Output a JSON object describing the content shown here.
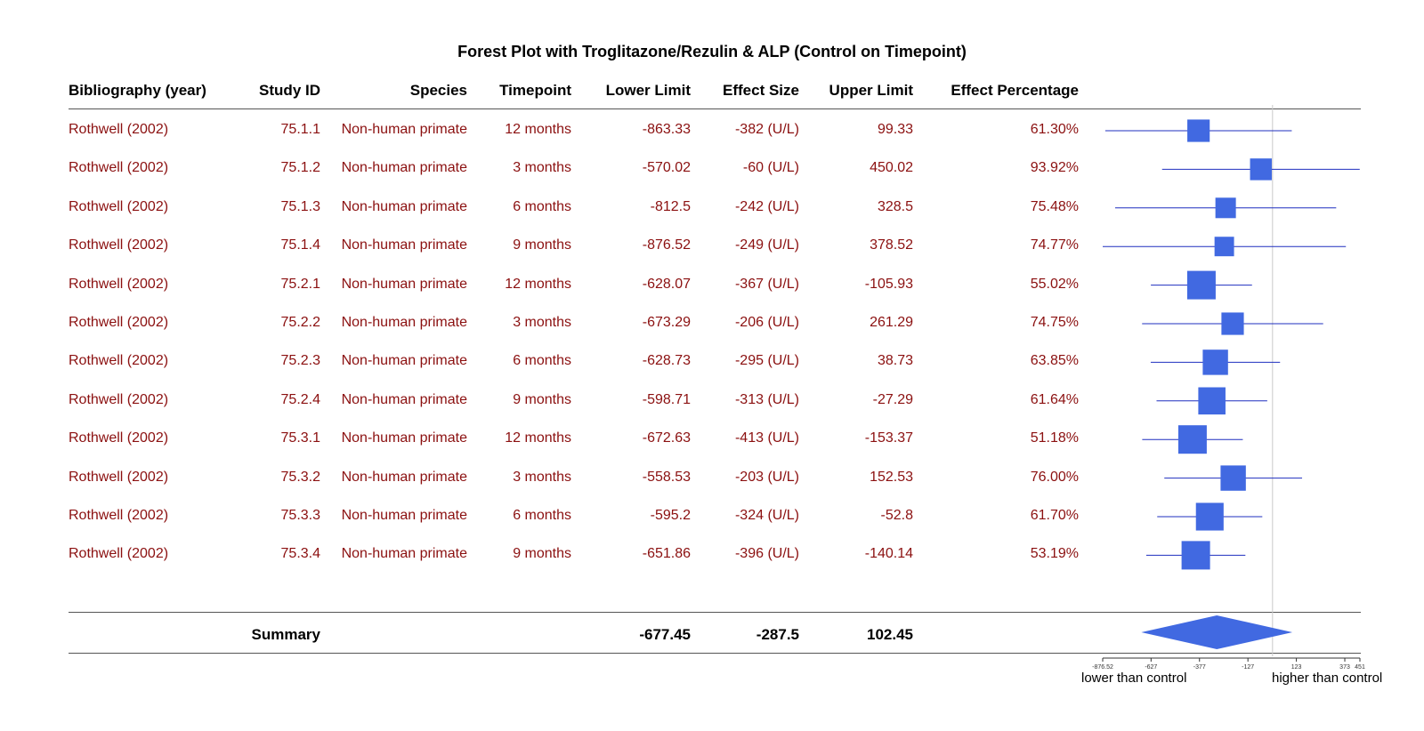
{
  "chart_data": {
    "type": "forest",
    "title": "Forest Plot with Troglitazone/Rezulin & ALP (Control on Timepoint)",
    "columns": [
      "Bibliography (year)",
      "Study ID",
      "Species",
      "Timepoint",
      "Lower Limit",
      "Effect Size",
      "Upper Limit",
      "Effect Percentage"
    ],
    "rows": [
      {
        "bib": "Rothwell (2002)",
        "study_id": "75.1.1",
        "species": "Non-human primate",
        "timepoint": "12 months",
        "lower_label": "-863.33",
        "effect_label": "-382 (U/L)",
        "upper_label": "99.33",
        "pct_label": "61.30%",
        "lower": -863.33,
        "effect": -382,
        "upper": 99.33,
        "weight": 0.62
      },
      {
        "bib": "Rothwell (2002)",
        "study_id": "75.1.2",
        "species": "Non-human primate",
        "timepoint": "3 months",
        "lower_label": "-570.02",
        "effect_label": "-60 (U/L)",
        "upper_label": "450.02",
        "pct_label": "93.92%",
        "lower": -570.02,
        "effect": -60,
        "upper": 450.02,
        "weight": 0.58
      },
      {
        "bib": "Rothwell (2002)",
        "study_id": "75.1.3",
        "species": "Non-human primate",
        "timepoint": "6 months",
        "lower_label": "-812.5",
        "effect_label": "-242 (U/L)",
        "upper_label": "328.5",
        "pct_label": "75.48%",
        "lower": -812.5,
        "effect": -242,
        "upper": 328.5,
        "weight": 0.5
      },
      {
        "bib": "Rothwell (2002)",
        "study_id": "75.1.4",
        "species": "Non-human primate",
        "timepoint": "9 months",
        "lower_label": "-876.52",
        "effect_label": "-249 (U/L)",
        "upper_label": "378.52",
        "pct_label": "74.77%",
        "lower": -876.52,
        "effect": -249,
        "upper": 378.52,
        "weight": 0.44
      },
      {
        "bib": "Rothwell (2002)",
        "study_id": "75.2.1",
        "species": "Non-human primate",
        "timepoint": "12 months",
        "lower_label": "-628.07",
        "effect_label": "-367 (U/L)",
        "upper_label": "-105.93",
        "pct_label": "55.02%",
        "lower": -628.07,
        "effect": -367,
        "upper": -105.93,
        "weight": 1.0
      },
      {
        "bib": "Rothwell (2002)",
        "study_id": "75.2.2",
        "species": "Non-human primate",
        "timepoint": "3 months",
        "lower_label": "-673.29",
        "effect_label": "-206 (U/L)",
        "upper_label": "261.29",
        "pct_label": "74.75%",
        "lower": -673.29,
        "effect": -206,
        "upper": 261.29,
        "weight": 0.62
      },
      {
        "bib": "Rothwell (2002)",
        "study_id": "75.2.3",
        "species": "Non-human primate",
        "timepoint": "6 months",
        "lower_label": "-628.73",
        "effect_label": "-295 (U/L)",
        "upper_label": "38.73",
        "pct_label": "63.85%",
        "lower": -628.73,
        "effect": -295,
        "upper": 38.73,
        "weight": 0.8
      },
      {
        "bib": "Rothwell (2002)",
        "study_id": "75.2.4",
        "species": "Non-human primate",
        "timepoint": "9 months",
        "lower_label": "-598.71",
        "effect_label": "-313 (U/L)",
        "upper_label": "-27.29",
        "pct_label": "61.64%",
        "lower": -598.71,
        "effect": -313,
        "upper": -27.29,
        "weight": 0.92
      },
      {
        "bib": "Rothwell (2002)",
        "study_id": "75.3.1",
        "species": "Non-human primate",
        "timepoint": "12 months",
        "lower_label": "-672.63",
        "effect_label": "-413 (U/L)",
        "upper_label": "-153.37",
        "pct_label": "51.18%",
        "lower": -672.63,
        "effect": -413,
        "upper": -153.37,
        "weight": 1.0
      },
      {
        "bib": "Rothwell (2002)",
        "study_id": "75.3.2",
        "species": "Non-human primate",
        "timepoint": "3 months",
        "lower_label": "-558.53",
        "effect_label": "-203 (U/L)",
        "upper_label": "152.53",
        "pct_label": "76.00%",
        "lower": -558.53,
        "effect": -203,
        "upper": 152.53,
        "weight": 0.8
      },
      {
        "bib": "Rothwell (2002)",
        "study_id": "75.3.3",
        "species": "Non-human primate",
        "timepoint": "6 months",
        "lower_label": "-595.2",
        "effect_label": "-324 (U/L)",
        "upper_label": "-52.8",
        "pct_label": "61.70%",
        "lower": -595.2,
        "effect": -324,
        "upper": -52.8,
        "weight": 0.95
      },
      {
        "bib": "Rothwell (2002)",
        "study_id": "75.3.4",
        "species": "Non-human primate",
        "timepoint": "9 months",
        "lower_label": "-651.86",
        "effect_label": "-396 (U/L)",
        "upper_label": "-140.14",
        "pct_label": "53.19%",
        "lower": -651.86,
        "effect": -396,
        "upper": -140.14,
        "weight": 1.0
      }
    ],
    "summary": {
      "label": "Summary",
      "lower_label": "-677.45",
      "effect_label": "-287.5",
      "upper_label": "102.45",
      "lower": -677.45,
      "effect": -287.5,
      "upper": 102.45
    },
    "x_ticks": [
      -876.52,
      -627,
      -377,
      -127,
      123,
      373,
      451
    ],
    "x_tick_labels": [
      "-876.52",
      "-627",
      "-377",
      "-127",
      "123",
      "373",
      "451"
    ],
    "xlim": [
      -876.52,
      451
    ],
    "reference_line": 0,
    "left_direction_label": "lower than control",
    "right_direction_label": "higher than control",
    "marker_color": "#4169e1",
    "text_color": "#8b1010"
  }
}
